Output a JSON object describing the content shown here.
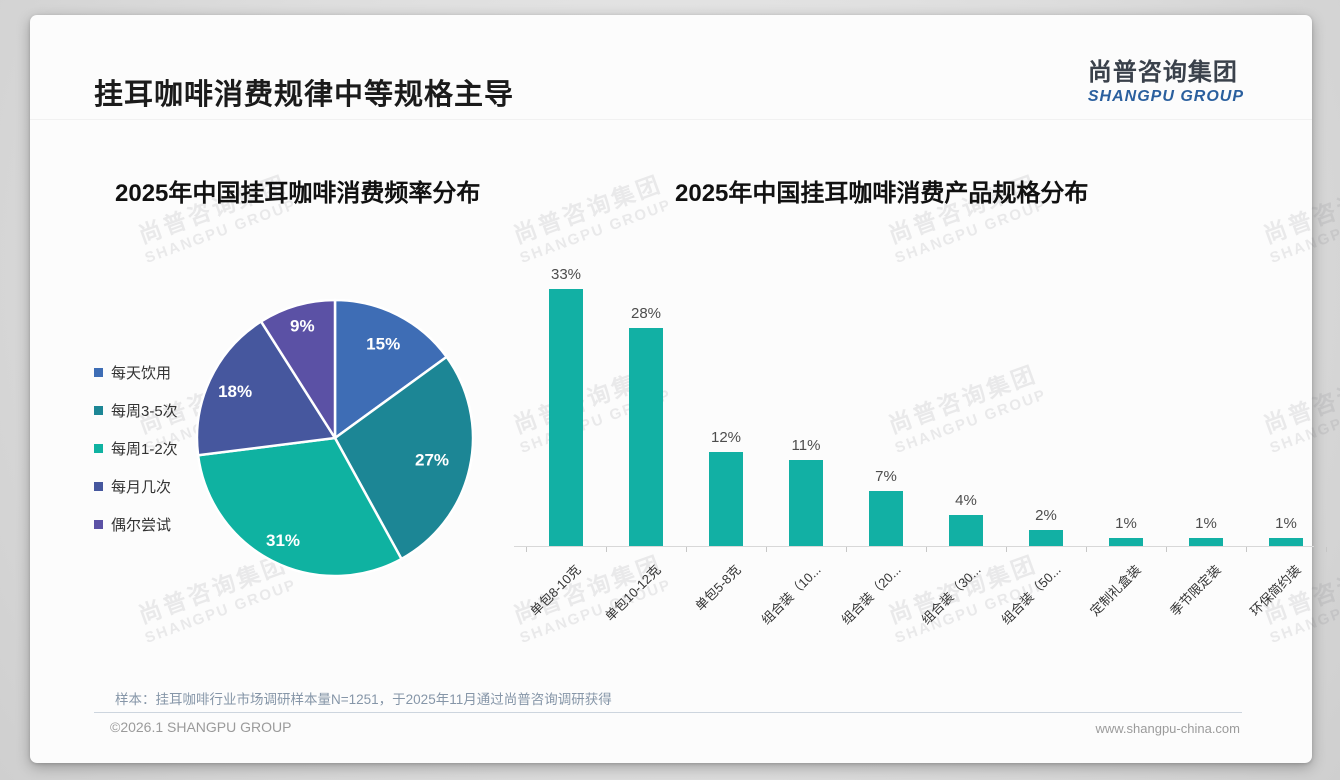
{
  "page": {
    "title": "挂耳咖啡消费规律中等规格主导",
    "logo": {
      "cn": "尚普咨询集团",
      "en": "SHANGPU GROUP"
    },
    "watermark": {
      "line1": "尚普咨询集团",
      "line2": "SHANGPU GROUP"
    },
    "note": "样本：挂耳咖啡行业市场调研样本量N=1251，于2025年11月通过尚普咨询调研获得",
    "footer": {
      "copyright": "©2026.1 SHANGPU GROUP",
      "website": "www.shangpu-china.com"
    }
  },
  "chart_data": [
    {
      "type": "pie",
      "title": "2025年中国挂耳咖啡消费频率分布",
      "labels": [
        "每天饮用",
        "每周3-5次",
        "每周1-2次",
        "每月几次",
        "偶尔尝试"
      ],
      "values": [
        15,
        27,
        31,
        18,
        9
      ],
      "unit": "%",
      "colors": [
        "#3e6db5",
        "#1c8695",
        "#0fb2a1",
        "#46579e",
        "#5b51a5"
      ],
      "legend_position": "left",
      "start_angle_deg": 0,
      "direction": "clockwise",
      "slice_border_color": "#ffffff",
      "label_color": "#ffffff"
    },
    {
      "type": "bar",
      "title": "2025年中国挂耳咖啡消费产品规格分布",
      "categories": [
        "单包8-10克",
        "单包10-12克",
        "单包5-8克",
        "组合装（10...",
        "组合装（20...",
        "组合装（30...",
        "组合装（50...",
        "定制礼盒装",
        "季节限定装",
        "环保简约装"
      ],
      "values": [
        33,
        28,
        12,
        11,
        7,
        4,
        2,
        1,
        1,
        1
      ],
      "unit": "%",
      "bar_color": "#12b0a4",
      "data_labels": true,
      "ylim": [
        0,
        35
      ],
      "grid": false,
      "legend_position": "none"
    }
  ]
}
